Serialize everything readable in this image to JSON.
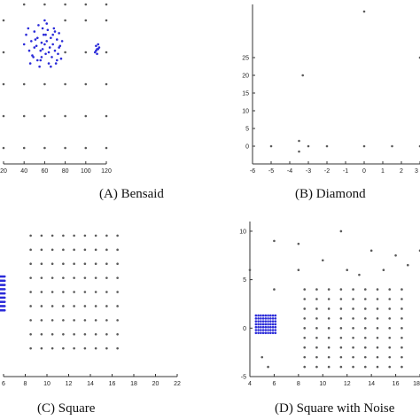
{
  "chart_data": [
    {
      "type": "scatter",
      "caption": "(A)  Bensaid",
      "xlim": [
        20,
        120
      ],
      "ylim": [
        -5,
        95
      ],
      "xticks": [
        20,
        40,
        60,
        80,
        100,
        120
      ],
      "xtick_labels": [
        "20",
        "40",
        "60",
        "80",
        "100",
        "120"
      ],
      "series": [
        {
          "color": "#2b2bd9",
          "points": [
            [
              40,
              70
            ],
            [
              42,
              76
            ],
            [
              44,
              80
            ],
            [
              45,
              66
            ],
            [
              47,
              72
            ],
            [
              48,
              63
            ],
            [
              50,
              78
            ],
            [
              52,
              69
            ],
            [
              53,
              74
            ],
            [
              54,
              82
            ],
            [
              56,
              60
            ],
            [
              57,
              71
            ],
            [
              58,
              67
            ],
            [
              59,
              76
            ],
            [
              60,
              85
            ],
            [
              61,
              64
            ],
            [
              62,
              72
            ],
            [
              63,
              79
            ],
            [
              64,
              58
            ],
            [
              65,
              68
            ],
            [
              66,
              74
            ],
            [
              67,
              62
            ],
            [
              68,
              70
            ],
            [
              69,
              80
            ],
            [
              70,
              66
            ],
            [
              71,
              58
            ],
            [
              72,
              73
            ],
            [
              73,
              64
            ],
            [
              74,
              77
            ],
            [
              75,
              69
            ],
            [
              76,
              61
            ],
            [
              77,
              72
            ],
            [
              46,
              58
            ],
            [
              49,
              62
            ],
            [
              55,
              56
            ],
            [
              50,
              68
            ],
            [
              58,
              80
            ],
            [
              62,
              83
            ],
            [
              66,
              56
            ],
            [
              70,
              78
            ],
            [
              51,
              73
            ],
            [
              56,
              66
            ],
            [
              60,
              70
            ],
            [
              64,
              65
            ],
            [
              68,
              76
            ],
            [
              72,
              60
            ],
            [
              74,
              68
            ],
            [
              57,
              62
            ],
            [
              53,
              60
            ],
            [
              61,
              76
            ],
            [
              110,
              69
            ],
            [
              111,
              67
            ],
            [
              112,
              70
            ],
            [
              110,
              66
            ],
            [
              112,
              67
            ],
            [
              109,
              65
            ],
            [
              113,
              68
            ],
            [
              111,
              64
            ]
          ]
        },
        {
          "color": "#5a5a5a",
          "points": [
            [
              20,
              5
            ],
            [
              40,
              5
            ],
            [
              60,
              5
            ],
            [
              80,
              5
            ],
            [
              100,
              5
            ],
            [
              120,
              5
            ],
            [
              20,
              25
            ],
            [
              40,
              25
            ],
            [
              60,
              25
            ],
            [
              80,
              25
            ],
            [
              100,
              25
            ],
            [
              120,
              25
            ],
            [
              20,
              45
            ],
            [
              40,
              45
            ],
            [
              60,
              45
            ],
            [
              80,
              45
            ],
            [
              100,
              45
            ],
            [
              120,
              45
            ],
            [
              20,
              65
            ],
            [
              80,
              65
            ],
            [
              100,
              65
            ],
            [
              120,
              65
            ],
            [
              20,
              85
            ],
            [
              80,
              85
            ],
            [
              100,
              85
            ],
            [
              120,
              85
            ],
            [
              40,
              95
            ],
            [
              60,
              95
            ],
            [
              80,
              95
            ],
            [
              100,
              95
            ],
            [
              120,
              95
            ]
          ]
        }
      ]
    },
    {
      "type": "scatter",
      "caption": "(B)  Diamond",
      "xlim": [
        -6,
        3
      ],
      "ylim": [
        -5,
        40
      ],
      "xticks": [
        -6,
        -5,
        -4,
        -3,
        -2,
        -1,
        0,
        1,
        2,
        3
      ],
      "xtick_labels": [
        "-6",
        "-5",
        "-4",
        "-3",
        "-2",
        "-1",
        "0",
        "1",
        "2",
        "3"
      ],
      "yticks": [
        0,
        5,
        10,
        15,
        20,
        25
      ],
      "ytick_labels": [
        "0",
        "5",
        "10",
        "15",
        "20",
        "25"
      ],
      "series": [
        {
          "color": "#5a5a5a",
          "points": [
            [
              0,
              38
            ],
            [
              3,
              25
            ],
            [
              -3.3,
              20
            ],
            [
              -3.5,
              1.5
            ],
            [
              -3.5,
              -1.5
            ],
            [
              -5,
              0
            ],
            [
              -3,
              0
            ],
            [
              -2,
              0
            ],
            [
              0,
              0
            ],
            [
              1.5,
              0
            ],
            [
              3,
              0
            ]
          ]
        }
      ]
    },
    {
      "type": "scatter",
      "caption": "(C)    Square",
      "xlim": [
        6,
        22
      ],
      "ylim": [
        -2,
        9
      ],
      "xticks": [
        6,
        8,
        10,
        12,
        14,
        16,
        18,
        20,
        22
      ],
      "xtick_labels": [
        "6",
        "8",
        "10",
        "12",
        "14",
        "16",
        "18",
        "20",
        "22"
      ],
      "series": [
        {
          "color": "#2b2bd9",
          "grid": {
            "x_from": 5.6,
            "x_to": 6.1,
            "x_step": 0.1,
            "y_from": 2.7,
            "y_to": 5.1,
            "y_step": 0.3
          }
        },
        {
          "color": "#5a5a5a",
          "grid": {
            "x_from": 8.5,
            "x_to": 16.5,
            "x_step": 1,
            "y_from": 0,
            "y_to": 8,
            "y_step": 1
          }
        }
      ]
    },
    {
      "type": "scatter",
      "caption": "(D)  Square with Noise",
      "xlim": [
        4,
        18
      ],
      "ylim": [
        -5,
        11
      ],
      "xticks": [
        4,
        6,
        8,
        10,
        12,
        14,
        16,
        18
      ],
      "xtick_labels": [
        "4",
        "6",
        "8",
        "10",
        "12",
        "14",
        "16",
        "18"
      ],
      "yticks": [
        -5,
        0,
        5,
        10
      ],
      "ytick_labels": [
        "-5",
        "0",
        "5",
        "10"
      ],
      "series": [
        {
          "color": "#2b2bd9",
          "grid": {
            "x_from": 4.5,
            "x_to": 6.1,
            "x_step": 0.2,
            "y_from": -0.5,
            "y_to": 1.3,
            "y_step": 0.3
          }
        },
        {
          "color": "#5a5a5a",
          "grid": {
            "x_from": 8.5,
            "x_to": 16.5,
            "x_step": 1,
            "y_from": -4,
            "y_to": 4,
            "y_step": 1
          }
        },
        {
          "color": "#5a5a5a",
          "points": [
            [
              4,
              6
            ],
            [
              5,
              -3
            ],
            [
              5.5,
              -4
            ],
            [
              6,
              9
            ],
            [
              6,
              4
            ],
            [
              8,
              8.7
            ],
            [
              8,
              6
            ],
            [
              10,
              7
            ],
            [
              11.5,
              10
            ],
            [
              12,
              6
            ],
            [
              13,
              5.5
            ],
            [
              14,
              8
            ],
            [
              15,
              6
            ],
            [
              16,
              7.5
            ],
            [
              17,
              6.5
            ],
            [
              18,
              8
            ]
          ]
        }
      ]
    }
  ]
}
